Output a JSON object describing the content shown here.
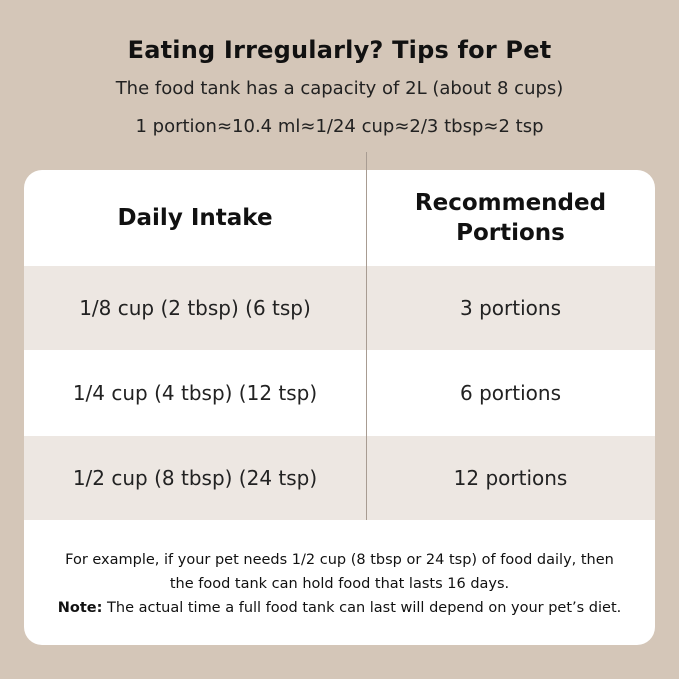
{
  "title": "Eating Irregularly? Tips for Pet",
  "subtitle_1": "The food tank has a capacity of 2L (about 8 cups)",
  "subtitle_2": "1 portion≈10.4 ml≈1/24 cup≈2/3 tbsp≈2 tsp",
  "table": {
    "headers": [
      "Daily Intake",
      "Recommended Portions"
    ],
    "rows": [
      {
        "intake": "1/8 cup (2 tbsp) (6 tsp)",
        "portions": "3 portions"
      },
      {
        "intake": "1/4 cup (4 tbsp) (12 tsp)",
        "portions": "6 portions"
      },
      {
        "intake": "1/2 cup (8 tbsp) (24 tsp)",
        "portions": "12 portions"
      }
    ]
  },
  "footer": {
    "line1": "For example, if your pet needs 1/2 cup (8 tbsp or 24 tsp) of food daily, then",
    "line2": "the food tank can hold food that lasts 16 days.",
    "note_label": "Note:",
    "note_text": " The actual time a full food tank can last will depend on your pet’s diet."
  },
  "colors": {
    "background": "#d4c6b8",
    "row_shade": "#ede7e2"
  }
}
